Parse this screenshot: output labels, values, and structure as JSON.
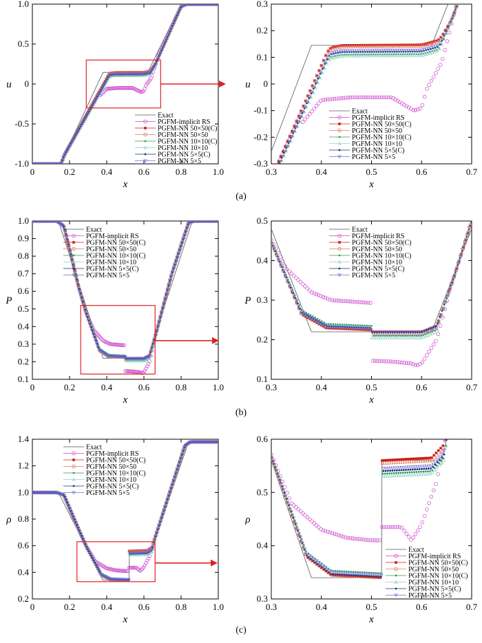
{
  "captions": [
    "(a)",
    "(b)",
    "(c)"
  ],
  "legend_labels": [
    "Exact",
    "PGFM-implicit RS",
    "PGFM-NN 50×50(C)",
    "PGFM-NN 50×50",
    "PGFM-NN 10×10(C)",
    "PGFM-NN 10×10",
    "PGFM-NN 5×5(C)",
    "PGFM-NN 5×5"
  ],
  "colors": {
    "exact": "#555555",
    "implicit_rs": "#cc44cc",
    "nn50c": "#c81e1e",
    "nn50": "#e07a5a",
    "nn10c": "#2a9a5a",
    "nn10": "#8fd0c0",
    "nn5c": "#1a2a80",
    "nn5": "#7070d0",
    "zoom_box": "#e02020"
  },
  "chart_data": [
    {
      "type": "line",
      "panel": "a-left",
      "xlabel": "x",
      "ylabel": "u",
      "xlim": [
        0,
        1
      ],
      "ylim": [
        -1,
        1
      ],
      "xticks": [
        "0",
        "0.2",
        "0.4",
        "0.6",
        "0.8",
        "1.0"
      ],
      "yticks": [
        "-1.0",
        "-0.5",
        "0",
        "0.5",
        "1.0"
      ],
      "legend": "bottom-right",
      "zoom_box": [
        0.29,
        0.69,
        -0.3,
        0.3
      ]
    },
    {
      "type": "line",
      "panel": "a-right",
      "xlabel": "x",
      "ylabel": "u",
      "xlim": [
        0.3,
        0.7
      ],
      "ylim": [
        -0.3,
        0.3
      ],
      "xticks": [
        "0.3",
        "0.4",
        "0.5",
        "0.6",
        "0.7"
      ],
      "yticks": [
        "-0.3",
        "-0.2",
        "-0.1",
        "0",
        "0.1",
        "0.2",
        "0.3"
      ],
      "legend": "bottom-center"
    },
    {
      "type": "line",
      "panel": "b-left",
      "xlabel": "x",
      "ylabel": "P",
      "xlim": [
        0,
        1
      ],
      "ylim": [
        0.1,
        1
      ],
      "xticks": [
        "0",
        "0.2",
        "0.4",
        "0.6",
        "0.8",
        "1.0"
      ],
      "yticks": [
        "0.1",
        "0.2",
        "0.3",
        "0.4",
        "0.5",
        "0.6",
        "0.7",
        "0.8",
        "0.9",
        "1.0"
      ],
      "legend": "top-center",
      "zoom_box": [
        0.26,
        0.66,
        0.13,
        0.52
      ]
    },
    {
      "type": "line",
      "panel": "b-right",
      "xlabel": "x",
      "ylabel": "P",
      "xlim": [
        0.3,
        0.7
      ],
      "ylim": [
        0.1,
        0.5
      ],
      "xticks": [
        "0.3",
        "0.4",
        "0.5",
        "0.6",
        "0.7"
      ],
      "yticks": [
        "0.1",
        "0.2",
        "0.3",
        "0.4",
        "0.5"
      ],
      "legend": "top-center"
    },
    {
      "type": "line",
      "panel": "c-left",
      "xlabel": "x",
      "ylabel": "ρ",
      "xlim": [
        0,
        1
      ],
      "ylim": [
        0.2,
        1.4
      ],
      "xticks": [
        "0",
        "0.2",
        "0.4",
        "0.6",
        "0.8",
        "1.0"
      ],
      "yticks": [
        "0.2",
        "0.4",
        "0.6",
        "0.8",
        "1.0",
        "1.2",
        "1.4"
      ],
      "legend": "top-left",
      "zoom_box": [
        0.24,
        0.66,
        0.33,
        0.63
      ]
    },
    {
      "type": "line",
      "panel": "c-right",
      "xlabel": "x",
      "ylabel": "ρ",
      "xlim": [
        0.3,
        0.7
      ],
      "ylim": [
        0.3,
        0.6
      ],
      "xticks": [
        "0.3",
        "0.4",
        "0.5",
        "0.6",
        "0.7"
      ],
      "yticks": [
        "0.3",
        "0.4",
        "0.5",
        "0.6"
      ],
      "legend": "bottom-right"
    }
  ]
}
